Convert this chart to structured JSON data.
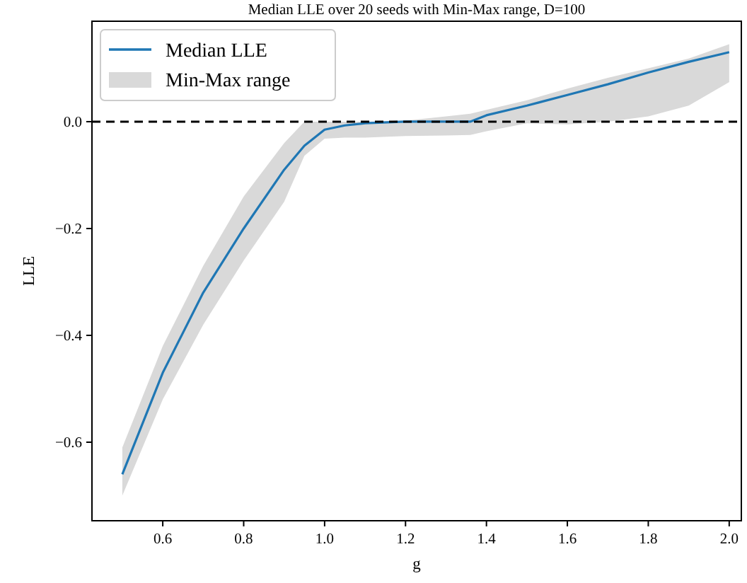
{
  "chart_data": {
    "type": "line",
    "title": "Median LLE over 20 seeds with Min-Max range, D=100",
    "xlabel": "g",
    "ylabel": "LLE",
    "x": [
      0.5,
      0.6,
      0.7,
      0.8,
      0.9,
      0.95,
      1.0,
      1.05,
      1.1,
      1.2,
      1.3,
      1.36,
      1.4,
      1.5,
      1.6,
      1.7,
      1.8,
      1.9,
      2.0
    ],
    "series": [
      {
        "name": "Median LLE",
        "type": "line",
        "color": "#1f77b4",
        "values": [
          -0.66,
          -0.47,
          -0.32,
          -0.2,
          -0.09,
          -0.045,
          -0.015,
          -0.007,
          -0.003,
          0,
          0,
          0,
          0.012,
          0.03,
          0.05,
          0.07,
          0.092,
          0.112,
          0.13
        ],
        "lower": [
          -0.7,
          -0.52,
          -0.38,
          -0.26,
          -0.15,
          -0.064,
          -0.032,
          -0.03,
          -0.03,
          -0.027,
          -0.026,
          -0.025,
          -0.018,
          -0.003,
          -0.005,
          0,
          0.01,
          0.03,
          0.074
        ],
        "upper": [
          -0.61,
          -0.42,
          -0.27,
          -0.14,
          -0.04,
          0,
          0,
          0,
          0,
          0.002,
          0.01,
          0.015,
          0.022,
          0.04,
          0.062,
          0.082,
          0.1,
          0.118,
          0.145
        ]
      }
    ],
    "annotations": [
      "Min-Max range"
    ],
    "xlim": [
      0.425,
      2.03
    ],
    "ylim": [
      -0.747,
      0.188
    ],
    "xticks": [
      {
        "value": 0.6,
        "label": "0.6"
      },
      {
        "value": 0.8,
        "label": "0.8"
      },
      {
        "value": 1.0,
        "label": "1.0"
      },
      {
        "value": 1.2,
        "label": "1.2"
      },
      {
        "value": 1.4,
        "label": "1.4"
      },
      {
        "value": 1.6,
        "label": "1.6"
      },
      {
        "value": 1.8,
        "label": "1.8"
      },
      {
        "value": 2.0,
        "label": "2.0"
      }
    ],
    "yticks": [
      {
        "value": -0.6,
        "label": "−0.6"
      },
      {
        "value": -0.4,
        "label": "−0.4"
      },
      {
        "value": -0.2,
        "label": "−0.2"
      },
      {
        "value": 0,
        "label": "0.0"
      }
    ],
    "ref_lines": [
      {
        "axis": "y",
        "value": 0,
        "color": "#000000",
        "line_style": "dashed"
      }
    ],
    "legend": "top left",
    "grid": false,
    "marker": "none",
    "line_style": "solid"
  }
}
